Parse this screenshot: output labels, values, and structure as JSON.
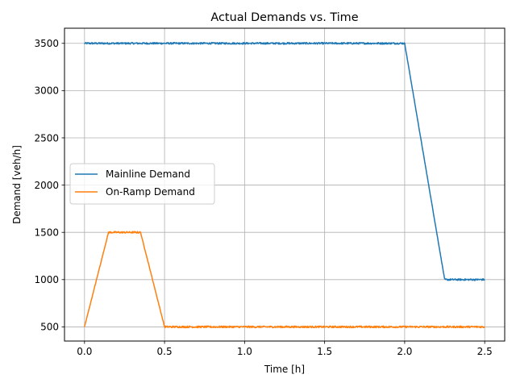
{
  "chart_data": {
    "type": "line",
    "title": "Actual Demands vs. Time",
    "xlabel": "Time [h]",
    "ylabel": "Demand [veh/h]",
    "xlim": [
      -0.125,
      2.625
    ],
    "ylim": [
      350,
      3660
    ],
    "xticks": [
      0.0,
      0.5,
      1.0,
      1.5,
      2.0,
      2.5
    ],
    "xtick_labels": [
      "0.0",
      "0.5",
      "1.0",
      "1.5",
      "2.0",
      "2.5"
    ],
    "yticks": [
      500,
      1000,
      1500,
      2000,
      2500,
      3000,
      3500
    ],
    "ytick_labels": [
      "500",
      "1000",
      "1500",
      "2000",
      "2500",
      "3000",
      "3500"
    ],
    "grid": true,
    "legend_position": "center-left",
    "series": [
      {
        "name": "Mainline Demand",
        "color": "#1f77b4",
        "x": [
          0.0,
          0.25,
          0.5,
          1.0,
          1.5,
          2.0,
          2.25,
          2.5
        ],
        "y": [
          3500,
          3500,
          3500,
          3500,
          3500,
          3500,
          1000,
          1000
        ]
      },
      {
        "name": "On-Ramp Demand",
        "color": "#ff7f0e",
        "x": [
          0.0,
          0.15,
          0.35,
          0.5,
          1.0,
          1.5,
          2.0,
          2.5
        ],
        "y": [
          500,
          1500,
          1500,
          500,
          500,
          500,
          500,
          500
        ]
      }
    ]
  }
}
